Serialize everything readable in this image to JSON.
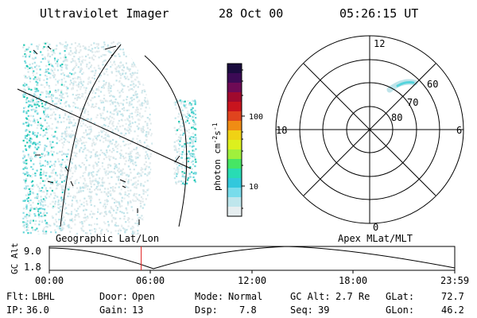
{
  "header": {
    "title": "Ultraviolet Imager",
    "date": "28 Oct 00",
    "time": "05:26:15 UT"
  },
  "colorbar": {
    "unit_label": "photon cm",
    "unit_exp1": "-2",
    "unit_mid": "s",
    "unit_exp2": "-1",
    "tick_100": "100",
    "tick_10": "10",
    "colors_top_to_bottom": [
      "#1a0c3e",
      "#3c0a55",
      "#6e0a55",
      "#a00a2e",
      "#c8141e",
      "#e0441e",
      "#f08c14",
      "#f0d214",
      "#dcf01e",
      "#a0f03c",
      "#46e664",
      "#28dcb4",
      "#32c8dc",
      "#78dceb",
      "#bee6ec",
      "#e6eef0"
    ]
  },
  "polar": {
    "mlt_top": "12",
    "mlt_bottom": "0",
    "mlt_left": "18",
    "mlt_right": "6",
    "lat_60": "60",
    "lat_70": "70",
    "lat_80": "80"
  },
  "labels": {
    "left_panel": "Geographic Lat/Lon",
    "right_panel": "Apex MLat/MLT"
  },
  "altitude_plot": {
    "axis_label": "GC Alt",
    "y_top": "9.0",
    "y_bottom": "1.8",
    "x_ticks": [
      "00:00",
      "06:00",
      "12:00",
      "18:00",
      "23:59"
    ],
    "marker_time_hours": 5.44
  },
  "status": {
    "flt_label": "Flt:",
    "flt_value": "LBHL",
    "ip_label": "IP:",
    "ip_value": "36.0",
    "door_label": "Door:",
    "door_value": "Open",
    "gain_label": "Gain:",
    "gain_value": "13",
    "mode_label": "Mode:",
    "mode_value": "Normal",
    "dsp_label": "Dsp:",
    "dsp_value": "7.8",
    "gcalt_label": "GC Alt:",
    "gcalt_value": "2.7 Re",
    "seq_label": "Seq:",
    "seq_value": "39",
    "glat_label": "GLat:",
    "glat_value": "72.7",
    "glon_label": "GLon:",
    "glon_value": "46.2"
  }
}
